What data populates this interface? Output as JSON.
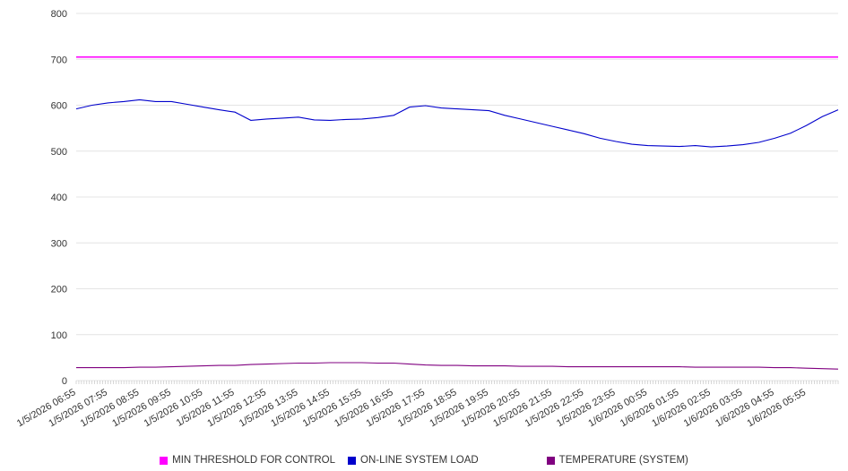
{
  "chart_data": {
    "type": "line",
    "title": "",
    "xlabel": "",
    "ylabel": "",
    "ylim": [
      0,
      800
    ],
    "y_ticks": [
      0,
      100,
      200,
      300,
      400,
      500,
      600,
      700,
      800
    ],
    "grid": "horizontal",
    "legend_position": "bottom",
    "minor_ticks": 288,
    "x_labels": [
      "1/5/2026 06:55",
      "1/5/2026 07:55",
      "1/5/2026 08:55",
      "1/5/2026 09:55",
      "1/5/2026 10:55",
      "1/5/2026 11:55",
      "1/5/2026 12:55",
      "1/5/2026 13:55",
      "1/5/2026 14:55",
      "1/5/2026 15:55",
      "1/5/2026 16:55",
      "1/5/2026 17:55",
      "1/5/2026 18:55",
      "1/5/2026 19:55",
      "1/5/2026 20:55",
      "1/5/2026 21:55",
      "1/5/2026 22:55",
      "1/5/2026 23:55",
      "1/6/2026 00:55",
      "1/6/2026 01:55",
      "1/6/2026 02:55",
      "1/6/2026 03:55",
      "1/6/2026 04:55",
      "1/6/2026 05:55"
    ],
    "series": [
      {
        "name": "MIN THRESHOLD FOR CONTROL",
        "color": "#ff00ff",
        "width": 1.6,
        "values": [
          705,
          705
        ]
      },
      {
        "name": "ON-LINE SYSTEM LOAD",
        "color": "#0000cc",
        "width": 1.1,
        "values": [
          592,
          600,
          605,
          608,
          612,
          608,
          608,
          602,
          596,
          590,
          585,
          567,
          570,
          572,
          574,
          568,
          567,
          569,
          570,
          573,
          578,
          596,
          599,
          594,
          592,
          590,
          588,
          578,
          570,
          562,
          554,
          546,
          538,
          528,
          521,
          515,
          512,
          511,
          510,
          512,
          509,
          511,
          514,
          519,
          528,
          539,
          556,
          575,
          590
        ]
      },
      {
        "name": "TEMPERATURE (SYSTEM)",
        "color": "#800080",
        "width": 1.1,
        "values": [
          28,
          28,
          28,
          28,
          29,
          29,
          30,
          31,
          32,
          33,
          33,
          35,
          36,
          37,
          38,
          38,
          39,
          39,
          39,
          38,
          38,
          36,
          34,
          33,
          33,
          32,
          32,
          32,
          31,
          31,
          31,
          30,
          30,
          30,
          30,
          30,
          30,
          30,
          30,
          29,
          29,
          29,
          29,
          29,
          28,
          28,
          27,
          26,
          25
        ]
      }
    ]
  }
}
